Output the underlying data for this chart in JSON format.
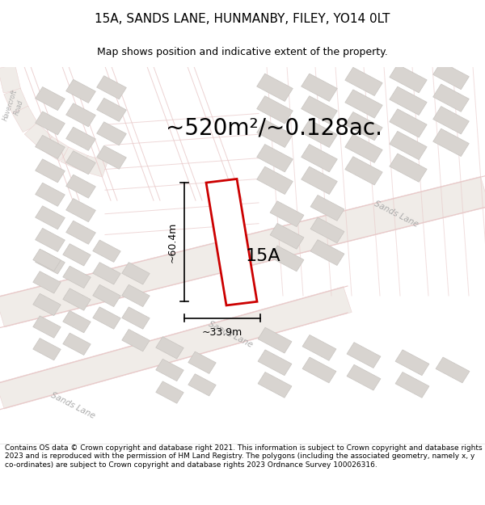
{
  "title": "15A, SANDS LANE, HUNMANBY, FILEY, YO14 0LT",
  "subtitle": "Map shows position and indicative extent of the property.",
  "area_text": "~520m²/~0.128ac.",
  "label_15A": "15A",
  "dim_height": "~60.4m",
  "dim_width": "~33.9m",
  "footer": "Contains OS data © Crown copyright and database right 2021. This information is subject to Crown copyright and database rights 2023 and is reproduced with the permission of HM Land Registry. The polygons (including the associated geometry, namely x, y co-ordinates) are subject to Crown copyright and database rights 2023 Ordnance Survey 100026316.",
  "bg_color": "#ffffff",
  "map_bg": "#f7f4f0",
  "road_outline_color": "#e8c8c8",
  "road_fill_color": "#f0e8e4",
  "building_fill": "#d8d4d0",
  "building_edge": "#c8c4c0",
  "highlight_fill": "#ffffff",
  "highlight_edge": "#cc0000",
  "dim_color": "#000000",
  "road_label_color": "#aaaaaa",
  "title_fontsize": 11,
  "subtitle_fontsize": 9,
  "area_fontsize": 20,
  "label_fontsize": 16,
  "dim_fontsize": 9,
  "footer_fontsize": 6.5
}
